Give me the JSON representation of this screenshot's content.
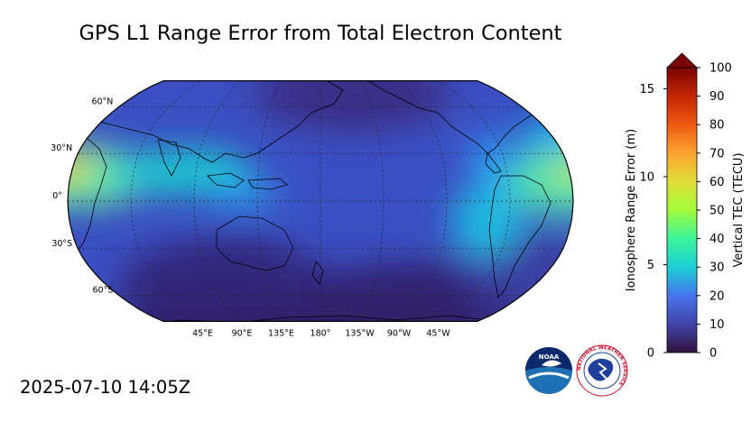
{
  "title": "GPS L1 Range Error from Total Electron Content",
  "timestamp": "2025-07-10 14:05Z",
  "map": {
    "lat_labels": [
      "60°N",
      "30°N",
      "0°",
      "30°S",
      "60°S"
    ],
    "lon_labels": [
      "45°E",
      "90°E",
      "135°E",
      "180°",
      "135°W",
      "90°W",
      "45°W"
    ],
    "center_longitude": 180,
    "projection": "robinson"
  },
  "colorbar": {
    "left_label": "Ionosphere Range Error (m)",
    "right_label": "Vertical TEC (TECU)",
    "left_ticks": [
      "0",
      "5",
      "10",
      "15"
    ],
    "right_ticks": [
      "0",
      "10",
      "20",
      "30",
      "40",
      "50",
      "60",
      "70",
      "80",
      "90",
      "100"
    ],
    "tec_range": [
      0,
      100
    ],
    "range_error_range": [
      0,
      16.2
    ],
    "extend": "max"
  },
  "logos": {
    "noaa_text": "NOAA",
    "nws_text": "NATIONAL WEATHER SERVICE"
  },
  "colors": {
    "min_color": "#30123b",
    "low_color": "#4454c4",
    "mid_color": "#1ae4b6",
    "high_color": "#faba39",
    "max_color": "#7a0403"
  }
}
